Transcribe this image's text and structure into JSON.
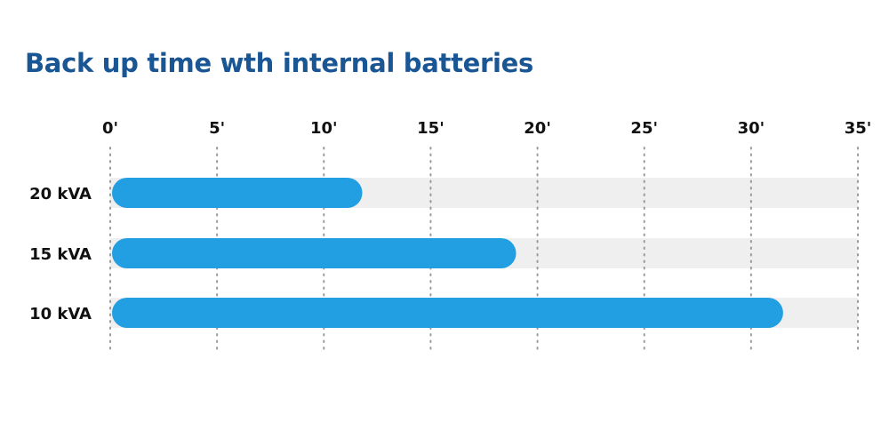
{
  "chart_data": {
    "type": "bar",
    "orientation": "horizontal",
    "title": "Back up time wth internal batteries",
    "categories": [
      "20 kVA",
      "15 kVA",
      "10 kVA"
    ],
    "values": [
      11.8,
      19,
      31.5
    ],
    "xlim": [
      0,
      35
    ],
    "x_ticks": [
      "0'",
      "5'",
      "10'",
      "15'",
      "20'",
      "25'",
      "30'",
      "35'"
    ],
    "x_tick_values": [
      0,
      5,
      10,
      15,
      20,
      25,
      30,
      35
    ],
    "x_axis_position": "top",
    "grid": "dotted vertical",
    "legend": "none",
    "colors": {
      "bar": "#229fe2",
      "track": "#efefef",
      "title": "#1a5694",
      "text": "#111111",
      "grid": "#9a9a9a"
    }
  }
}
